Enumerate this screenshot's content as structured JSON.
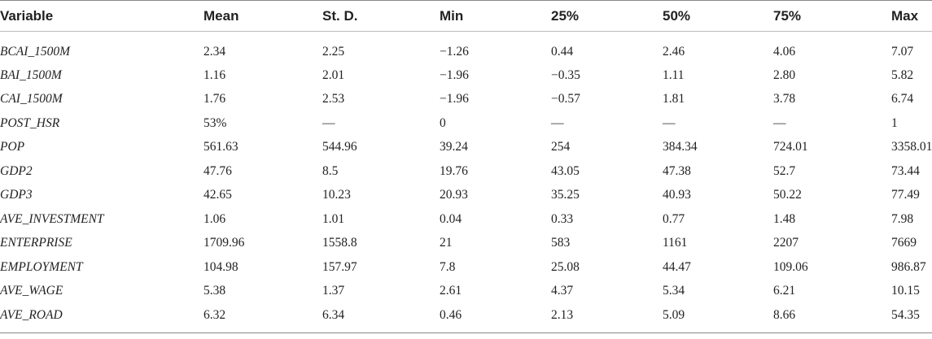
{
  "headers": [
    "Variable",
    "Mean",
    "St. D.",
    "Min",
    "25%",
    "50%",
    "75%",
    "Max"
  ],
  "rows": [
    [
      "BCAI_1500M",
      "2.34",
      "2.25",
      "−1.26",
      "0.44",
      "2.46",
      "4.06",
      "7.07"
    ],
    [
      "BAI_1500M",
      "1.16",
      "2.01",
      "−1.96",
      "−0.35",
      "1.11",
      "2.80",
      "5.82"
    ],
    [
      "CAI_1500M",
      "1.76",
      "2.53",
      "−1.96",
      "−0.57",
      "1.81",
      "3.78",
      "6.74"
    ],
    [
      "POST_HSR",
      "53%",
      "—",
      "0",
      "—",
      "—",
      "—",
      "1"
    ],
    [
      "POP",
      "561.63",
      "544.96",
      "39.24",
      "254",
      "384.34",
      "724.01",
      "3358.01"
    ],
    [
      "GDP2",
      "47.76",
      "8.5",
      "19.76",
      "43.05",
      "47.38",
      "52.7",
      "73.44"
    ],
    [
      "GDP3",
      "42.65",
      "10.23",
      "20.93",
      "35.25",
      "40.93",
      "50.22",
      "77.49"
    ],
    [
      "AVE_INVESTMENT",
      "1.06",
      "1.01",
      "0.04",
      "0.33",
      "0.77",
      "1.48",
      "7.98"
    ],
    [
      "ENTERPRISE",
      "1709.96",
      "1558.8",
      "21",
      "583",
      "1161",
      "2207",
      "7669"
    ],
    [
      "EMPLOYMENT",
      "104.98",
      "157.97",
      "7.8",
      "25.08",
      "44.47",
      "109.06",
      "986.87"
    ],
    [
      "AVE_WAGE",
      "5.38",
      "1.37",
      "2.61",
      "4.37",
      "5.34",
      "6.21",
      "10.15"
    ],
    [
      "AVE_ROAD",
      "6.32",
      "6.34",
      "0.46",
      "2.13",
      "5.09",
      "8.66",
      "54.35"
    ]
  ]
}
